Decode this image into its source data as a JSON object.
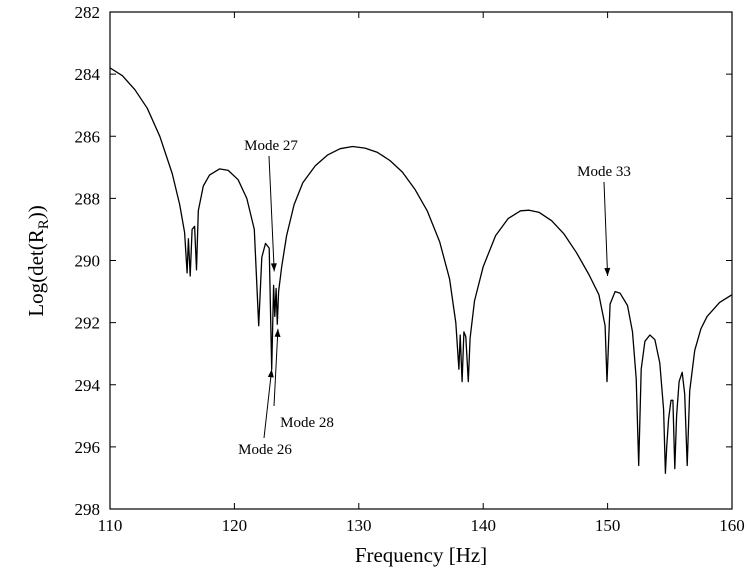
{
  "chart_data": {
    "type": "line",
    "title": "",
    "xlabel": "Frequency [Hz]",
    "ylabel_base": "Log(det(R",
    "ylabel_sub": "R",
    "ylabel_close": "))",
    "xlim": [
      110,
      160
    ],
    "ylim": [
      282,
      298
    ],
    "y_axis_inverted": true,
    "grid": false,
    "legend": "none",
    "x_ticks": [
      110,
      120,
      130,
      140,
      150,
      160
    ],
    "y_ticks": [
      282,
      284,
      286,
      288,
      290,
      292,
      294,
      296,
      298
    ],
    "line_color": "#000000",
    "series": [
      {
        "points": [
          [
            110.0,
            283.8
          ],
          [
            111.0,
            284.05
          ],
          [
            112.0,
            284.5
          ],
          [
            113.0,
            285.1
          ],
          [
            114.0,
            286.0
          ],
          [
            115.0,
            287.2
          ],
          [
            115.6,
            288.2
          ],
          [
            116.0,
            289.1
          ],
          [
            116.2,
            290.4
          ],
          [
            116.3,
            289.3
          ],
          [
            116.45,
            290.5
          ],
          [
            116.6,
            289.0
          ],
          [
            116.8,
            288.9
          ],
          [
            116.95,
            290.3
          ],
          [
            117.1,
            288.4
          ],
          [
            117.5,
            287.6
          ],
          [
            118.0,
            287.25
          ],
          [
            118.8,
            287.05
          ],
          [
            119.5,
            287.1
          ],
          [
            120.3,
            287.4
          ],
          [
            121.0,
            288.0
          ],
          [
            121.6,
            289.0
          ],
          [
            121.95,
            292.1
          ],
          [
            122.2,
            289.9
          ],
          [
            122.5,
            289.45
          ],
          [
            122.8,
            289.6
          ],
          [
            123.0,
            293.5
          ],
          [
            123.15,
            290.8
          ],
          [
            123.25,
            291.8
          ],
          [
            123.35,
            290.9
          ],
          [
            123.45,
            292.05
          ],
          [
            123.55,
            291.0
          ],
          [
            123.8,
            290.2
          ],
          [
            124.2,
            289.2
          ],
          [
            124.8,
            288.2
          ],
          [
            125.5,
            287.5
          ],
          [
            126.5,
            286.95
          ],
          [
            127.5,
            286.6
          ],
          [
            128.5,
            286.4
          ],
          [
            129.5,
            286.33
          ],
          [
            130.5,
            286.38
          ],
          [
            131.5,
            286.52
          ],
          [
            132.5,
            286.78
          ],
          [
            133.5,
            287.15
          ],
          [
            134.5,
            287.7
          ],
          [
            135.5,
            288.4
          ],
          [
            136.5,
            289.4
          ],
          [
            137.3,
            290.6
          ],
          [
            137.8,
            292.0
          ],
          [
            138.05,
            293.5
          ],
          [
            138.15,
            292.4
          ],
          [
            138.3,
            293.9
          ],
          [
            138.45,
            292.3
          ],
          [
            138.6,
            292.45
          ],
          [
            138.8,
            293.9
          ],
          [
            138.95,
            292.5
          ],
          [
            139.3,
            291.3
          ],
          [
            140.0,
            290.2
          ],
          [
            141.0,
            289.2
          ],
          [
            142.0,
            288.65
          ],
          [
            143.0,
            288.4
          ],
          [
            143.7,
            288.38
          ],
          [
            144.5,
            288.45
          ],
          [
            145.5,
            288.72
          ],
          [
            146.5,
            289.15
          ],
          [
            147.5,
            289.75
          ],
          [
            148.5,
            290.45
          ],
          [
            149.3,
            291.1
          ],
          [
            149.8,
            292.1
          ],
          [
            149.95,
            293.9
          ],
          [
            150.2,
            291.4
          ],
          [
            150.6,
            291.0
          ],
          [
            151.0,
            291.05
          ],
          [
            151.6,
            291.45
          ],
          [
            152.0,
            292.3
          ],
          [
            152.3,
            293.8
          ],
          [
            152.5,
            296.6
          ],
          [
            152.7,
            293.5
          ],
          [
            153.0,
            292.6
          ],
          [
            153.4,
            292.4
          ],
          [
            153.8,
            292.55
          ],
          [
            154.2,
            293.3
          ],
          [
            154.5,
            294.8
          ],
          [
            154.65,
            296.85
          ],
          [
            154.75,
            296.0
          ],
          [
            154.9,
            295.1
          ],
          [
            155.1,
            294.5
          ],
          [
            155.25,
            294.5
          ],
          [
            155.4,
            296.7
          ],
          [
            155.55,
            295.0
          ],
          [
            155.75,
            293.9
          ],
          [
            156.0,
            293.6
          ],
          [
            156.2,
            294.3
          ],
          [
            156.4,
            296.6
          ],
          [
            156.6,
            294.2
          ],
          [
            157.0,
            292.9
          ],
          [
            157.5,
            292.2
          ],
          [
            158.0,
            291.8
          ],
          [
            159.0,
            291.35
          ],
          [
            160.0,
            291.1
          ]
        ]
      }
    ],
    "annotations": [
      {
        "text": "Mode 27",
        "point": [
          123.2,
          290.35
        ]
      },
      {
        "text": "Mode 33",
        "point": [
          150.0,
          290.5
        ]
      },
      {
        "text": "Mode 28",
        "point": [
          123.5,
          292.2
        ]
      },
      {
        "text": "Mode 26",
        "point": [
          123.0,
          293.5
        ]
      }
    ]
  }
}
